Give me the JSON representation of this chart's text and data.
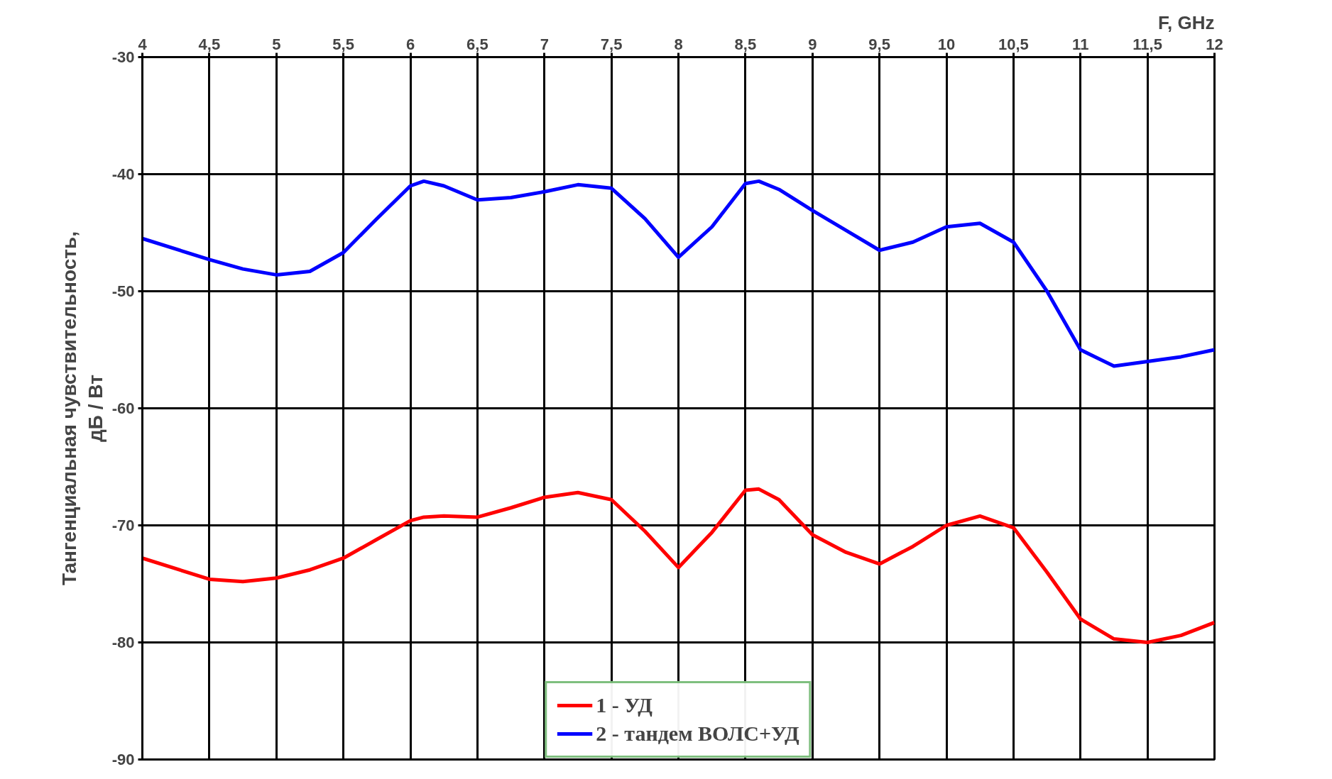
{
  "chart_data": {
    "type": "line",
    "xlabel": "F, GHz",
    "ylabel": "Тангенциальная чувствительность,\nдБ / Вт",
    "xlim": [
      4,
      12
    ],
    "ylim": [
      -90,
      -30
    ],
    "xticks": [
      4,
      {
        "value": 4.5,
        "label": "4,5"
      },
      5,
      {
        "value": 5.5,
        "label": "5,5"
      },
      6,
      {
        "value": 6.5,
        "label": "6,5"
      },
      7,
      {
        "value": 7.5,
        "label": "7,5"
      },
      8,
      {
        "value": 8.5,
        "label": "8,5"
      },
      9,
      {
        "value": 9.5,
        "label": "9,5"
      },
      10,
      {
        "value": 10.5,
        "label": "10,5"
      },
      11,
      {
        "value": 11.5,
        "label": "11,5"
      },
      12
    ],
    "yticks": [
      -90,
      -80,
      -70,
      -60,
      -50,
      -40,
      -30
    ],
    "grid": true,
    "legend": "bottom",
    "marker": "none",
    "line_style": "solid",
    "x": [
      4,
      4.5,
      4.75,
      5,
      5.25,
      5.5,
      5.75,
      6,
      6.1,
      6.25,
      6.5,
      6.75,
      7,
      7.25,
      7.5,
      7.75,
      8,
      8.25,
      8.5,
      8.6,
      8.75,
      9,
      9.25,
      9.5,
      9.75,
      10,
      10.25,
      10.5,
      10.75,
      11,
      11.25,
      11.5,
      11.75,
      12
    ],
    "series": [
      {
        "name": "1 - УД",
        "color": "#ff0000",
        "values": [
          -72.8,
          -74.6,
          -74.8,
          -74.5,
          -73.8,
          -72.8,
          -71.2,
          -69.6,
          -69.3,
          -69.2,
          -69.3,
          -68.5,
          -67.6,
          -67.2,
          -67.8,
          -70.5,
          -73.6,
          -70.6,
          -67.0,
          -66.9,
          -67.8,
          -70.8,
          -72.3,
          -73.3,
          -71.8,
          -70.0,
          -69.2,
          -70.2,
          -74.0,
          -78.0,
          -79.7,
          -80.0,
          -79.4,
          -78.3
        ]
      },
      {
        "name": "2 - тандем ВОЛС+УД",
        "color": "#0000ff",
        "values": [
          -45.5,
          -47.3,
          -48.1,
          -48.6,
          -48.3,
          -46.7,
          -43.8,
          -41.0,
          -40.6,
          -41.0,
          -42.2,
          -42.0,
          -41.5,
          -40.9,
          -41.2,
          -43.8,
          -47.1,
          -44.5,
          -40.8,
          -40.6,
          -41.3,
          -43.1,
          -44.8,
          -46.5,
          -45.8,
          -44.5,
          -44.2,
          -45.8,
          -50.0,
          -55.0,
          -56.4,
          -56.0,
          -55.6,
          -55.0
        ]
      }
    ]
  }
}
